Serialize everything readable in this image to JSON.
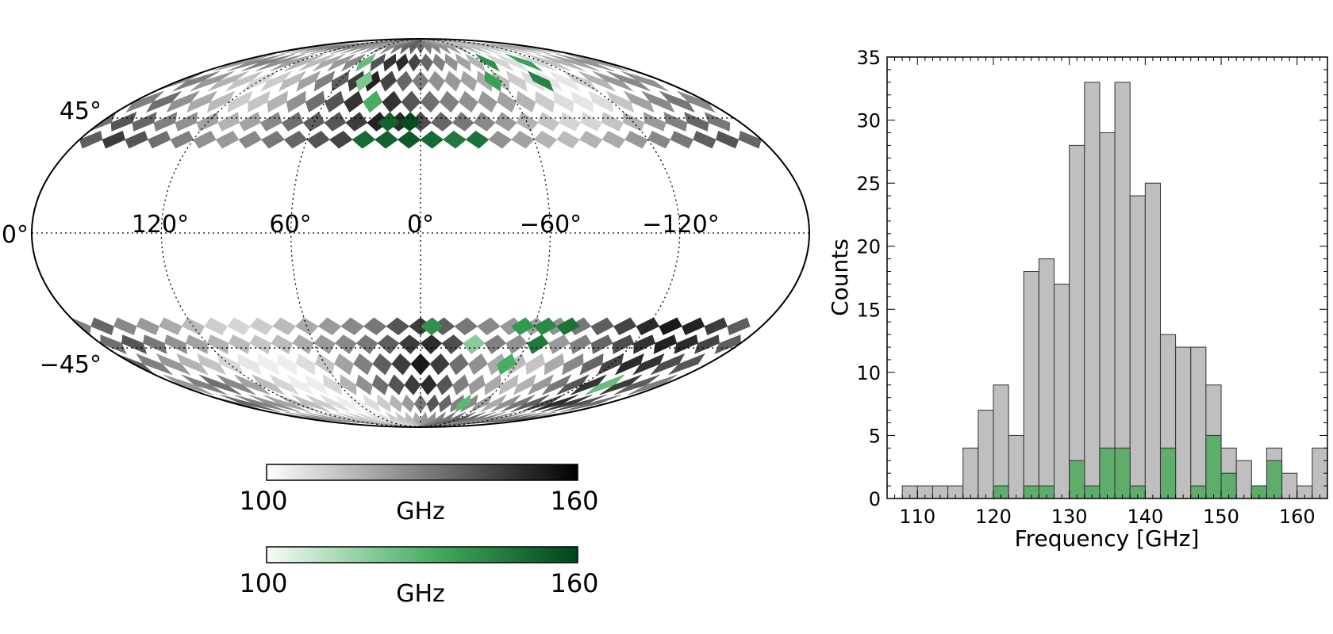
{
  "colors": {
    "grey_low": "#ffffff",
    "grey_high": "#000000",
    "green_low": "#f7fcf5",
    "green_mid": "#41ab5d",
    "green_high": "#00441b",
    "hist_grey": "#bfbfbf",
    "hist_green": "#5fad6b",
    "edge": "#333333"
  },
  "map": {
    "projection": "mollweide",
    "latitude_labels": [
      "45°",
      "0°",
      "−45°"
    ],
    "longitude_labels": [
      "120°",
      "60°",
      "0°",
      "−60°",
      "−120°"
    ],
    "masked_band_latitude_deg": 30,
    "colorbars": [
      {
        "name": "grey",
        "min_label": "100",
        "max_label": "160",
        "label": "GHz"
      },
      {
        "name": "green",
        "min_label": "100",
        "max_label": "160",
        "label": "GHz"
      }
    ]
  },
  "chart_data": [
    {
      "type": "heatmap",
      "title": "",
      "projection": "mollweide",
      "units": "GHz",
      "vmin": 100,
      "vmax": 160,
      "grid_lon_step_deg": 12,
      "grid_lat_rows_deg": [
        -82,
        -72,
        -62,
        -52,
        -43,
        -36,
        36,
        43,
        52,
        62,
        72,
        82
      ],
      "grey_rows": [
        [
          128,
          130,
          126,
          122,
          118,
          116,
          114,
          112,
          110,
          108,
          108,
          112,
          114,
          116,
          120,
          124,
          126,
          130,
          132,
          134,
          138,
          136,
          132,
          130,
          128,
          126,
          130,
          134,
          136,
          140
        ],
        [
          132,
          136,
          130,
          126,
          122,
          118,
          116,
          112,
          108,
          104,
          104,
          108,
          112,
          118,
          124,
          132,
          140,
          136,
          130,
          128,
          124,
          120,
          126,
          132,
          138,
          142,
          150,
          146,
          140,
          134
        ],
        [
          124,
          130,
          134,
          128,
          122,
          116,
          110,
          104,
          104,
          110,
          118,
          126,
          134,
          140,
          146,
          150,
          140,
          130,
          124,
          120,
          116,
          118,
          124,
          132,
          140,
          148,
          152,
          146,
          138,
          130
        ],
        [
          138,
          130,
          124,
          118,
          114,
          110,
          106,
          104,
          104,
          108,
          114,
          122,
          130,
          138,
          146,
          154,
          146,
          134,
          126,
          120,
          116,
          114,
          120,
          128,
          136,
          144,
          150,
          148,
          142,
          140
        ],
        [
          134,
          140,
          132,
          126,
          122,
          118,
          116,
          114,
          116,
          120,
          124,
          128,
          132,
          138,
          146,
          150,
          142,
          136,
          130,
          126,
          122,
          124,
          130,
          136,
          142,
          148,
          152,
          150,
          144,
          138
        ],
        [
          130,
          136,
          128,
          124,
          120,
          116,
          112,
          110,
          112,
          116,
          120,
          124,
          128,
          132,
          140,
          146,
          138,
          132,
          128,
          124,
          122,
          126,
          132,
          138,
          144,
          150,
          154,
          152,
          146,
          138
        ],
        [
          138,
          146,
          140,
          134,
          130,
          126,
          124,
          128,
          132,
          136,
          140,
          144,
          150,
          158,
          154,
          140,
          132,
          130,
          126,
          122,
          118,
          116,
          118,
          120,
          124,
          128,
          132,
          138,
          140,
          136
        ],
        [
          134,
          140,
          136,
          130,
          126,
          122,
          118,
          122,
          128,
          134,
          138,
          140,
          146,
          152,
          150,
          142,
          136,
          132,
          128,
          124,
          118,
          114,
          110,
          110,
          114,
          118,
          124,
          130,
          136,
          132
        ],
        [
          130,
          134,
          126,
          120,
          116,
          112,
          114,
          118,
          126,
          134,
          140,
          148,
          154,
          148,
          140,
          134,
          130,
          126,
          124,
          122,
          118,
          112,
          108,
          106,
          108,
          114,
          122,
          128,
          132,
          128
        ],
        [
          126,
          130,
          124,
          118,
          114,
          110,
          112,
          116,
          122,
          130,
          138,
          146,
          152,
          144,
          136,
          130,
          126,
          124,
          122,
          120,
          116,
          112,
          108,
          106,
          106,
          112,
          118,
          124,
          128,
          126
        ],
        [
          124,
          128,
          130,
          126,
          122,
          118,
          116,
          120,
          124,
          128,
          134,
          140,
          148,
          150,
          144,
          136,
          130,
          126,
          122,
          118,
          114,
          110,
          108,
          108,
          110,
          114,
          118,
          122,
          126,
          124
        ],
        [
          122,
          124,
          128,
          130,
          132,
          130,
          128,
          126,
          124,
          122,
          124,
          128,
          132,
          136,
          138,
          134,
          130,
          128,
          126,
          124,
          120,
          118,
          116,
          114,
          114,
          116,
          118,
          120,
          122,
          122
        ]
      ],
      "green_cells": [
        {
          "lon": -6,
          "lat": -36,
          "value": 140
        },
        {
          "lon": -54,
          "lat": -36,
          "value": 138
        },
        {
          "lon": -66,
          "lat": -36,
          "value": 142
        },
        {
          "lon": -78,
          "lat": -36,
          "value": 148
        },
        {
          "lon": -66,
          "lat": -43,
          "value": 146
        },
        {
          "lon": -30,
          "lat": -43,
          "value": 120
        },
        {
          "lon": -54,
          "lat": -52,
          "value": 132
        },
        {
          "lon": -42,
          "lat": -72,
          "value": 128
        },
        {
          "lon": -138,
          "lat": -62,
          "value": 126
        },
        {
          "lon": 30,
          "lat": 36,
          "value": 150
        },
        {
          "lon": 18,
          "lat": 36,
          "value": 152
        },
        {
          "lon": 6,
          "lat": 36,
          "value": 154
        },
        {
          "lon": -6,
          "lat": 36,
          "value": 150
        },
        {
          "lon": -18,
          "lat": 36,
          "value": 146
        },
        {
          "lon": -30,
          "lat": 36,
          "value": 148
        },
        {
          "lon": 18,
          "lat": 43,
          "value": 152
        },
        {
          "lon": 6,
          "lat": 43,
          "value": 158
        },
        {
          "lon": 30,
          "lat": 52,
          "value": 132
        },
        {
          "lon": 42,
          "lat": 62,
          "value": 122
        },
        {
          "lon": 54,
          "lat": 72,
          "value": 126
        },
        {
          "lon": -54,
          "lat": 62,
          "value": 136
        },
        {
          "lon": -66,
          "lat": 72,
          "value": 140
        },
        {
          "lon": -90,
          "lat": 62,
          "value": 144
        },
        {
          "lon": -102,
          "lat": 72,
          "value": 136
        }
      ]
    },
    {
      "type": "bar",
      "title": "",
      "xlabel": "Frequency [GHz]",
      "ylabel": "Counts",
      "xlim": [
        106,
        164
      ],
      "ylim": [
        0,
        35
      ],
      "bin_width": 2,
      "bin_starts": [
        108,
        110,
        112,
        114,
        116,
        118,
        120,
        122,
        124,
        126,
        128,
        130,
        132,
        134,
        136,
        138,
        140,
        142,
        144,
        146,
        148,
        150,
        152,
        154,
        156,
        158,
        160,
        162
      ],
      "x_ticks": [
        "110",
        "120",
        "130",
        "140",
        "150",
        "160"
      ],
      "y_ticks": [
        "0",
        "5",
        "10",
        "15",
        "20",
        "25",
        "30",
        "35"
      ],
      "series": [
        {
          "name": "all",
          "color": "#bfbfbf",
          "values": [
            1,
            1,
            1,
            1,
            4,
            7,
            9,
            5,
            18,
            19,
            17,
            28,
            33,
            29,
            33,
            24,
            25,
            13,
            12,
            12,
            9,
            4,
            3,
            1,
            4,
            2,
            1,
            4
          ]
        },
        {
          "name": "selected",
          "color": "#5fad6b",
          "values": [
            0,
            0,
            0,
            0,
            0,
            0,
            1,
            0,
            1,
            1,
            0,
            3,
            1,
            4,
            4,
            1,
            0,
            4,
            0,
            1,
            5,
            2,
            0,
            1,
            3,
            0,
            0,
            0
          ]
        }
      ]
    }
  ]
}
